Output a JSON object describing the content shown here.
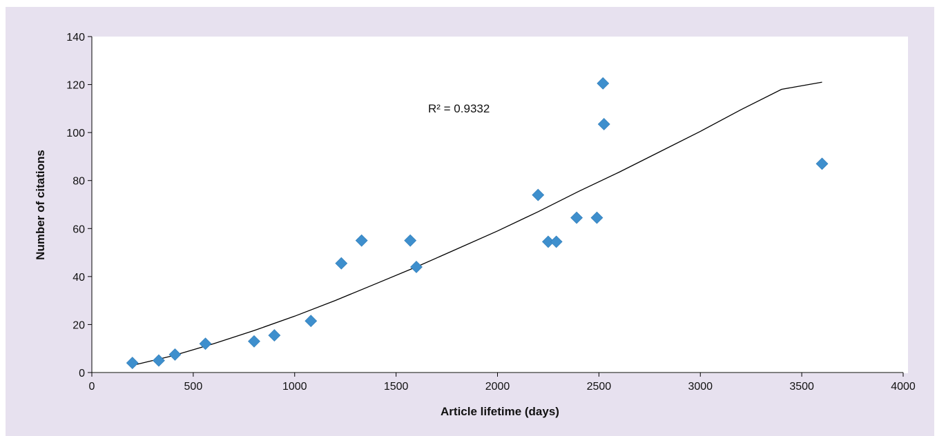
{
  "chart_data": {
    "type": "scatter",
    "xlabel": "Article lifetime (days)",
    "ylabel": "Number of citations",
    "xlim": [
      0,
      4000
    ],
    "ylim": [
      0,
      140
    ],
    "x_ticks": [
      "0",
      "500",
      "1000",
      "1500",
      "2000",
      "2500",
      "3000",
      "3500",
      "4000"
    ],
    "y_ticks": [
      "0",
      "20",
      "40",
      "60",
      "80",
      "100",
      "120",
      "140"
    ],
    "grid": false,
    "marker": "diamond",
    "colors": {
      "marker": "#3e8fcd",
      "trendline": "#000000",
      "frame": "#e7e1ef",
      "plot_area": "#ffffff"
    },
    "points": [
      {
        "x": 200,
        "y": 4
      },
      {
        "x": 330,
        "y": 5
      },
      {
        "x": 410,
        "y": 7.5
      },
      {
        "x": 560,
        "y": 12
      },
      {
        "x": 800,
        "y": 13
      },
      {
        "x": 900,
        "y": 15.5
      },
      {
        "x": 1080,
        "y": 21.5
      },
      {
        "x": 1230,
        "y": 45.5
      },
      {
        "x": 1330,
        "y": 55
      },
      {
        "x": 1570,
        "y": 55
      },
      {
        "x": 1600,
        "y": 44
      },
      {
        "x": 2200,
        "y": 74
      },
      {
        "x": 2250,
        "y": 54.5
      },
      {
        "x": 2290,
        "y": 54.5
      },
      {
        "x": 2390,
        "y": 64.5
      },
      {
        "x": 2490,
        "y": 64.5
      },
      {
        "x": 2520,
        "y": 120.5
      },
      {
        "x": 2525,
        "y": 103.5
      },
      {
        "x": 3600,
        "y": 87
      }
    ],
    "trendline": {
      "type": "power",
      "x": [
        200,
        400,
        600,
        800,
        1000,
        1200,
        1400,
        1600,
        1800,
        2000,
        2200,
        2400,
        2600,
        2800,
        3000,
        3200,
        3400,
        3600
      ],
      "y": [
        3,
        7,
        12,
        17.5,
        23.5,
        30,
        37,
        44,
        51.5,
        59,
        67,
        75.5,
        83.5,
        92,
        100.5,
        109.5,
        118,
        121
      ],
      "annotation": "R² = 0.9332"
    }
  }
}
